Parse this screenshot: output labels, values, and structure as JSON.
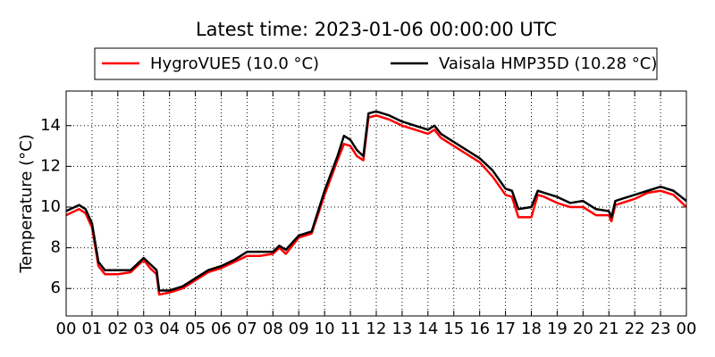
{
  "chart_data": {
    "type": "line",
    "title": "Latest time: 2023-01-06 00:00:00 UTC",
    "y_label": "Temperature (°C)",
    "x": [
      0,
      0.5,
      0.75,
      1.0,
      1.25,
      1.5,
      2.0,
      2.5,
      2.75,
      3.0,
      3.25,
      3.5,
      3.6,
      4.0,
      4.5,
      5.0,
      5.5,
      6.0,
      6.5,
      7.0,
      7.5,
      8.0,
      8.25,
      8.5,
      9.0,
      9.5,
      10.0,
      10.5,
      10.75,
      11.0,
      11.25,
      11.5,
      11.7,
      12.0,
      12.5,
      13.0,
      13.5,
      14.0,
      14.25,
      14.5,
      15.0,
      15.5,
      16.0,
      16.5,
      17.0,
      17.25,
      17.5,
      18.0,
      18.25,
      18.5,
      19.0,
      19.5,
      20.0,
      20.5,
      21.0,
      21.1,
      21.25,
      21.5,
      22.0,
      22.5,
      23.0,
      23.5,
      24.0
    ],
    "series": [
      {
        "name": "HygroVUE5 (10.0 °C)",
        "color": "#ff0000",
        "values": [
          9.6,
          9.9,
          9.7,
          9.0,
          7.1,
          6.7,
          6.7,
          6.8,
          7.1,
          7.4,
          7.0,
          6.7,
          5.7,
          5.8,
          6.0,
          6.4,
          6.8,
          7.0,
          7.3,
          7.6,
          7.6,
          7.7,
          8.0,
          7.7,
          8.5,
          8.7,
          10.6,
          12.3,
          13.1,
          13.0,
          12.5,
          12.3,
          14.4,
          14.5,
          14.3,
          14.0,
          13.8,
          13.6,
          13.8,
          13.4,
          13.0,
          12.6,
          12.2,
          11.5,
          10.6,
          10.5,
          9.5,
          9.5,
          10.6,
          10.5,
          10.2,
          10.0,
          10.0,
          9.6,
          9.6,
          9.3,
          10.1,
          10.2,
          10.4,
          10.7,
          10.8,
          10.6,
          10.0
        ]
      },
      {
        "name": "Vaisala HMP35D (10.28 °C)",
        "color": "#000000",
        "values": [
          9.8,
          10.1,
          9.9,
          9.2,
          7.3,
          6.9,
          6.9,
          6.9,
          7.2,
          7.5,
          7.2,
          6.9,
          5.9,
          5.9,
          6.1,
          6.5,
          6.9,
          7.1,
          7.4,
          7.8,
          7.8,
          7.8,
          8.1,
          7.9,
          8.6,
          8.8,
          10.8,
          12.5,
          13.5,
          13.3,
          12.8,
          12.5,
          14.6,
          14.7,
          14.5,
          14.2,
          14.0,
          13.8,
          14.0,
          13.6,
          13.2,
          12.8,
          12.4,
          11.8,
          10.9,
          10.8,
          9.9,
          10.0,
          10.8,
          10.7,
          10.5,
          10.2,
          10.3,
          9.9,
          9.8,
          9.5,
          10.3,
          10.4,
          10.6,
          10.8,
          11.0,
          10.8,
          10.3
        ]
      }
    ],
    "xlim": [
      0,
      24
    ],
    "xticks": [
      {
        "value": 0,
        "label": "00"
      },
      {
        "value": 1,
        "label": "01"
      },
      {
        "value": 2,
        "label": "02"
      },
      {
        "value": 3,
        "label": "03"
      },
      {
        "value": 4,
        "label": "04"
      },
      {
        "value": 5,
        "label": "05"
      },
      {
        "value": 6,
        "label": "06"
      },
      {
        "value": 7,
        "label": "07"
      },
      {
        "value": 8,
        "label": "08"
      },
      {
        "value": 9,
        "label": "09"
      },
      {
        "value": 10,
        "label": "10"
      },
      {
        "value": 11,
        "label": "11"
      },
      {
        "value": 12,
        "label": "12"
      },
      {
        "value": 13,
        "label": "13"
      },
      {
        "value": 14,
        "label": "14"
      },
      {
        "value": 15,
        "label": "15"
      },
      {
        "value": 16,
        "label": "16"
      },
      {
        "value": 17,
        "label": "17"
      },
      {
        "value": 18,
        "label": "18"
      },
      {
        "value": 19,
        "label": "19"
      },
      {
        "value": 20,
        "label": "20"
      },
      {
        "value": 21,
        "label": "21"
      },
      {
        "value": 22,
        "label": "22"
      },
      {
        "value": 23,
        "label": "23"
      },
      {
        "value": 24,
        "label": "00"
      }
    ],
    "ylim": [
      4.65,
      15.7
    ],
    "yticks": [
      6,
      8,
      10,
      12,
      14
    ],
    "grid": true
  }
}
